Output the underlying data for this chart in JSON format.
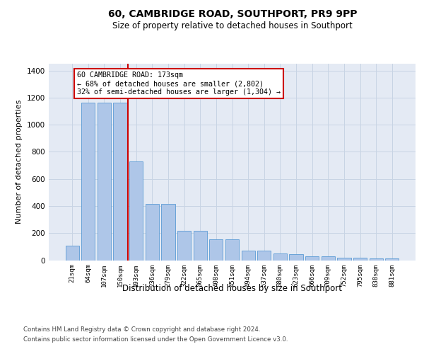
{
  "title": "60, CAMBRIDGE ROAD, SOUTHPORT, PR9 9PP",
  "subtitle": "Size of property relative to detached houses in Southport",
  "xlabel": "Distribution of detached houses by size in Southport",
  "ylabel": "Number of detached properties",
  "footer_line1": "Contains HM Land Registry data © Crown copyright and database right 2024.",
  "footer_line2": "Contains public sector information licensed under the Open Government Licence v3.0.",
  "categories": [
    "21sqm",
    "64sqm",
    "107sqm",
    "150sqm",
    "193sqm",
    "236sqm",
    "279sqm",
    "322sqm",
    "365sqm",
    "408sqm",
    "451sqm",
    "494sqm",
    "537sqm",
    "580sqm",
    "623sqm",
    "666sqm",
    "709sqm",
    "752sqm",
    "795sqm",
    "838sqm",
    "881sqm"
  ],
  "values": [
    105,
    1165,
    1165,
    1165,
    730,
    415,
    415,
    215,
    215,
    155,
    155,
    70,
    70,
    50,
    45,
    30,
    30,
    18,
    18,
    12,
    12
  ],
  "bar_color": "#aec6e8",
  "bar_edge_color": "#5b9bd5",
  "red_line_x": 3.5,
  "annotation_text": "60 CAMBRIDGE ROAD: 173sqm\n← 68% of detached houses are smaller (2,802)\n32% of semi-detached houses are larger (1,304) →",
  "annotation_box_color": "#ffffff",
  "annotation_box_edge": "#cc0000",
  "red_line_color": "#cc0000",
  "ylim": [
    0,
    1450
  ],
  "yticks": [
    0,
    200,
    400,
    600,
    800,
    1000,
    1200,
    1400
  ],
  "grid_color": "#c8d4e4",
  "background_color": "#e4eaf4"
}
